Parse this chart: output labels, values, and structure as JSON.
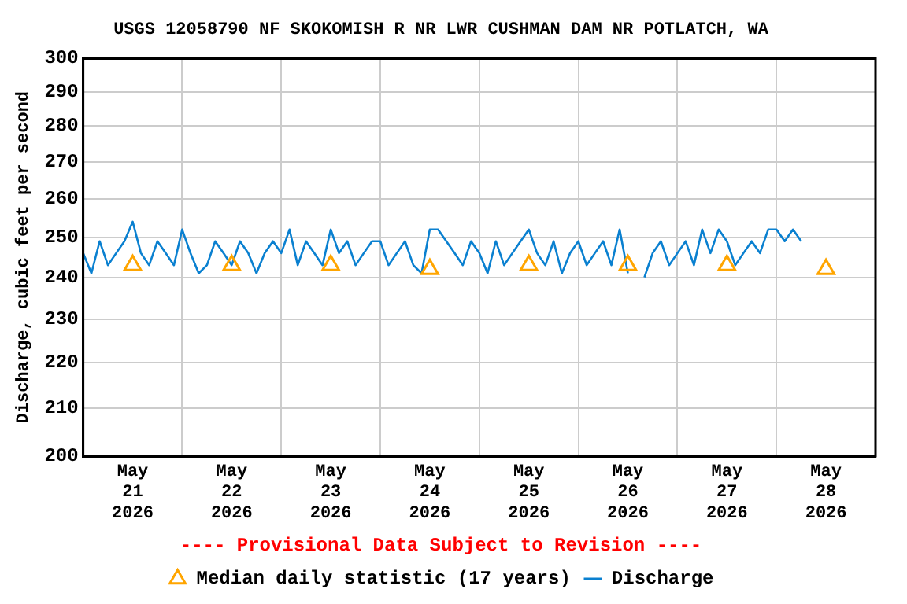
{
  "chart_data": {
    "type": "line",
    "title": "USGS 12058790 NF SKOKOMISH R NR LWR CUSHMAN DAM NR POTLATCH, WA",
    "ylabel": "Discharge, cubic feet per second",
    "annotations": [
      "---- Provisional Data Subject to Revision ----"
    ],
    "log": "y",
    "grid": true,
    "legend": "bottom",
    "xlim": [
      "2026-05-21T00:00",
      "2026-05-29T00:00"
    ],
    "xticks": [
      {
        "value": "2026-05-21T12:00",
        "label": "May 21 2026"
      },
      {
        "value": "2026-05-22T00:00",
        "label": null
      },
      {
        "value": "2026-05-22T12:00",
        "label": "May 22 2026"
      },
      {
        "value": "2026-05-23T00:00",
        "label": null
      },
      {
        "value": "2026-05-23T12:00",
        "label": "May 23 2026"
      },
      {
        "value": "2026-05-24T00:00",
        "label": null
      },
      {
        "value": "2026-05-24T12:00",
        "label": "May 24 2026"
      },
      {
        "value": "2026-05-25T00:00",
        "label": null
      },
      {
        "value": "2026-05-25T12:00",
        "label": "May 25 2026"
      },
      {
        "value": "2026-05-26T00:00",
        "label": null
      },
      {
        "value": "2026-05-26T12:00",
        "label": "May 26 2026"
      },
      {
        "value": "2026-05-27T00:00",
        "label": null
      },
      {
        "value": "2026-05-27T12:00",
        "label": "May 27 2026"
      },
      {
        "value": "2026-05-28T00:00",
        "label": null
      },
      {
        "value": "2026-05-28T12:00",
        "label": "May 28 2026"
      }
    ],
    "ylim": [
      200,
      300
    ],
    "yticks": [
      200,
      210,
      220,
      230,
      240,
      250,
      260,
      270,
      280,
      290,
      300
    ],
    "series": [
      {
        "name": "Median daily statistic (17 years)",
        "type": "scatter",
        "marker": "triangle",
        "color": "#ffa500",
        "x": [
          "2026-05-21T12:00",
          "2026-05-22T12:00",
          "2026-05-23T12:00",
          "2026-05-24T12:00",
          "2026-05-25T12:00",
          "2026-05-26T12:00",
          "2026-05-27T12:00",
          "2026-05-28T12:00"
        ],
        "values": [
          243,
          243,
          243,
          242,
          243,
          243,
          243,
          242
        ]
      },
      {
        "name": "Discharge",
        "marker": "none",
        "color": "#0a80d0",
        "x": [
          "2026-05-21T00:00",
          "2026-05-21T02:00",
          "2026-05-21T04:00",
          "2026-05-21T06:00",
          "2026-05-21T08:00",
          "2026-05-21T10:00",
          "2026-05-21T12:00",
          "2026-05-21T14:00",
          "2026-05-21T16:00",
          "2026-05-21T18:00",
          "2026-05-21T20:00",
          "2026-05-21T22:00",
          "2026-05-22T00:00",
          "2026-05-22T02:00",
          "2026-05-22T04:00",
          "2026-05-22T06:00",
          "2026-05-22T08:00",
          "2026-05-22T10:00",
          "2026-05-22T12:00",
          "2026-05-22T14:00",
          "2026-05-22T16:00",
          "2026-05-22T18:00",
          "2026-05-22T20:00",
          "2026-05-22T22:00",
          "2026-05-23T00:00",
          "2026-05-23T02:00",
          "2026-05-23T04:00",
          "2026-05-23T06:00",
          "2026-05-23T08:00",
          "2026-05-23T10:00",
          "2026-05-23T12:00",
          "2026-05-23T14:00",
          "2026-05-23T16:00",
          "2026-05-23T18:00",
          "2026-05-23T20:00",
          "2026-05-23T22:00",
          "2026-05-24T00:00",
          "2026-05-24T02:00",
          "2026-05-24T04:00",
          "2026-05-24T06:00",
          "2026-05-24T08:00",
          "2026-05-24T10:00",
          "2026-05-24T12:00",
          "2026-05-24T14:00",
          "2026-05-24T16:00",
          "2026-05-24T18:00",
          "2026-05-24T20:00",
          "2026-05-24T22:00",
          "2026-05-25T00:00",
          "2026-05-25T02:00",
          "2026-05-25T04:00",
          "2026-05-25T06:00",
          "2026-05-25T08:00",
          "2026-05-25T10:00",
          "2026-05-25T12:00",
          "2026-05-25T14:00",
          "2026-05-25T16:00",
          "2026-05-25T18:00",
          "2026-05-25T20:00",
          "2026-05-25T22:00",
          "2026-05-26T00:00",
          "2026-05-26T02:00",
          "2026-05-26T04:00",
          "2026-05-26T06:00",
          "2026-05-26T08:00",
          "2026-05-26T10:00",
          "2026-05-26T12:00",
          "2026-05-26T14:00",
          "2026-05-26T16:00",
          "2026-05-26T18:00",
          "2026-05-26T20:00",
          "2026-05-26T22:00",
          "2026-05-27T00:00",
          "2026-05-27T02:00",
          "2026-05-27T04:00",
          "2026-05-27T06:00",
          "2026-05-27T08:00",
          "2026-05-27T10:00",
          "2026-05-27T12:00",
          "2026-05-27T14:00",
          "2026-05-27T16:00",
          "2026-05-27T18:00",
          "2026-05-27T20:00",
          "2026-05-27T22:00",
          "2026-05-28T00:00",
          "2026-05-28T02:00",
          "2026-05-28T04:00",
          "2026-05-28T06:00"
        ],
        "values": [
          246,
          241,
          249,
          243,
          246,
          249,
          254,
          246,
          243,
          249,
          246,
          243,
          252,
          246,
          241,
          243,
          249,
          246,
          243,
          249,
          246,
          241,
          246,
          249,
          246,
          252,
          243,
          249,
          246,
          243,
          252,
          246,
          249,
          243,
          246,
          249,
          249,
          243,
          246,
          249,
          243,
          241,
          252,
          252,
          249,
          246,
          243,
          249,
          246,
          241,
          249,
          243,
          246,
          249,
          252,
          246,
          243,
          249,
          241,
          246,
          249,
          243,
          246,
          249,
          243,
          252,
          241,
          null,
          240,
          246,
          249,
          243,
          246,
          249,
          243,
          252,
          246,
          252,
          249,
          243,
          246,
          249,
          246,
          252,
          252,
          249,
          252,
          249
        ]
      }
    ]
  }
}
